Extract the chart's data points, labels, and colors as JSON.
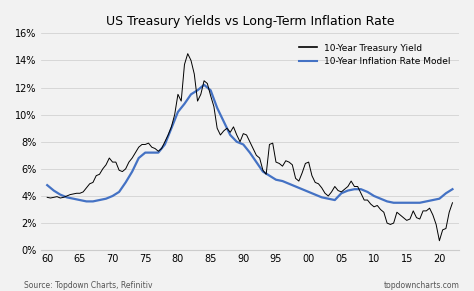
{
  "title": "US Treasury Yields vs Long-Term Inflation Rate",
  "legend_labels": [
    "10-Year Treasury Yield",
    "10-Year Inflation Rate Model"
  ],
  "legend_colors": [
    "black",
    "#4472C4"
  ],
  "source_left": "Source: Topdown Charts, Refinitiv",
  "source_right": "topdowncharts.com",
  "x_tick_positions": [
    1960,
    1965,
    1970,
    1975,
    1980,
    1985,
    1990,
    1995,
    2000,
    2005,
    2010,
    2015,
    2020
  ],
  "x_tick_labels": [
    "60",
    "65",
    "70",
    "75",
    "80",
    "85",
    "90",
    "95",
    "00",
    "05",
    "10",
    "15",
    "20"
  ],
  "ylim": [
    0,
    16
  ],
  "y_ticks": [
    0,
    2,
    4,
    6,
    8,
    10,
    12,
    14,
    16
  ],
  "y_tick_labels": [
    "0%",
    "2%",
    "4%",
    "6%",
    "8%",
    "10%",
    "12%",
    "14%",
    "16%"
  ],
  "background_color": "#f2f2f2",
  "treasury_yield": {
    "x": [
      1960,
      1960.5,
      1961,
      1961.5,
      1962,
      1962.5,
      1963,
      1963.5,
      1964,
      1964.5,
      1965,
      1965.5,
      1966,
      1966.5,
      1967,
      1967.5,
      1968,
      1968.5,
      1969,
      1969.5,
      1970,
      1970.5,
      1971,
      1971.5,
      1972,
      1972.5,
      1973,
      1973.5,
      1974,
      1974.5,
      1975,
      1975.5,
      1976,
      1976.5,
      1977,
      1977.5,
      1978,
      1978.5,
      1979,
      1979.5,
      1980,
      1980.5,
      1981,
      1981.5,
      1982,
      1982.5,
      1983,
      1983.5,
      1984,
      1984.5,
      1985,
      1985.5,
      1986,
      1986.5,
      1987,
      1987.5,
      1988,
      1988.5,
      1989,
      1989.5,
      1990,
      1990.5,
      1991,
      1991.5,
      1992,
      1992.5,
      1993,
      1993.5,
      1994,
      1994.5,
      1995,
      1995.5,
      1996,
      1996.5,
      1997,
      1997.5,
      1998,
      1998.5,
      1999,
      1999.5,
      2000,
      2000.5,
      2001,
      2001.5,
      2002,
      2002.5,
      2003,
      2003.5,
      2004,
      2004.5,
      2005,
      2005.5,
      2006,
      2006.5,
      2007,
      2007.5,
      2008,
      2008.5,
      2009,
      2009.5,
      2010,
      2010.5,
      2011,
      2011.5,
      2012,
      2012.5,
      2013,
      2013.5,
      2014,
      2014.5,
      2015,
      2015.5,
      2016,
      2016.5,
      2017,
      2017.5,
      2018,
      2018.5,
      2019,
      2019.5,
      2020,
      2020.5,
      2021,
      2021.5,
      2022
    ],
    "y": [
      3.9,
      3.85,
      3.9,
      3.95,
      3.85,
      3.9,
      4.0,
      4.1,
      4.15,
      4.2,
      4.2,
      4.3,
      4.6,
      4.9,
      5.0,
      5.5,
      5.6,
      6.0,
      6.3,
      6.8,
      6.5,
      6.5,
      5.9,
      5.8,
      6.0,
      6.5,
      6.8,
      7.2,
      7.6,
      7.8,
      7.8,
      7.9,
      7.6,
      7.5,
      7.3,
      7.5,
      8.0,
      8.5,
      9.1,
      10.0,
      11.5,
      11.0,
      13.7,
      14.5,
      14.0,
      13.0,
      11.0,
      11.5,
      12.5,
      12.3,
      11.4,
      10.6,
      9.0,
      8.5,
      8.8,
      9.0,
      8.7,
      9.1,
      8.5,
      8.0,
      8.6,
      8.5,
      8.0,
      7.5,
      7.0,
      6.8,
      5.9,
      5.6,
      7.8,
      7.9,
      6.5,
      6.4,
      6.2,
      6.6,
      6.5,
      6.3,
      5.3,
      5.1,
      5.7,
      6.4,
      6.5,
      5.5,
      5.0,
      4.9,
      4.6,
      4.2,
      4.0,
      4.3,
      4.7,
      4.4,
      4.3,
      4.5,
      4.7,
      5.1,
      4.7,
      4.7,
      4.2,
      3.7,
      3.7,
      3.4,
      3.2,
      3.3,
      3.0,
      2.8,
      2.0,
      1.9,
      2.0,
      2.8,
      2.6,
      2.4,
      2.2,
      2.3,
      2.9,
      2.4,
      2.3,
      2.9,
      2.9,
      3.1,
      2.6,
      1.9,
      0.7,
      1.5,
      1.6,
      2.8,
      3.5
    ]
  },
  "inflation_model": {
    "x": [
      1960,
      1961,
      1962,
      1963,
      1964,
      1965,
      1966,
      1967,
      1968,
      1969,
      1970,
      1971,
      1972,
      1973,
      1974,
      1975,
      1976,
      1977,
      1978,
      1979,
      1980,
      1981,
      1982,
      1983,
      1984,
      1985,
      1986,
      1987,
      1988,
      1989,
      1990,
      1991,
      1992,
      1993,
      1994,
      1995,
      1996,
      1997,
      1998,
      1999,
      2000,
      2001,
      2002,
      2003,
      2004,
      2005,
      2006,
      2007,
      2008,
      2009,
      2010,
      2011,
      2012,
      2013,
      2014,
      2015,
      2016,
      2017,
      2018,
      2019,
      2020,
      2021,
      2022
    ],
    "y": [
      4.8,
      4.4,
      4.1,
      3.9,
      3.8,
      3.7,
      3.6,
      3.6,
      3.7,
      3.8,
      4.0,
      4.3,
      5.0,
      5.8,
      6.8,
      7.2,
      7.2,
      7.2,
      7.8,
      9.0,
      10.2,
      10.8,
      11.5,
      11.8,
      12.2,
      11.8,
      10.5,
      9.5,
      8.5,
      8.0,
      7.8,
      7.2,
      6.5,
      5.8,
      5.5,
      5.2,
      5.1,
      4.9,
      4.7,
      4.5,
      4.3,
      4.1,
      3.9,
      3.8,
      3.7,
      4.2,
      4.4,
      4.5,
      4.5,
      4.3,
      4.0,
      3.8,
      3.6,
      3.5,
      3.5,
      3.5,
      3.5,
      3.5,
      3.6,
      3.7,
      3.8,
      4.2,
      4.5
    ]
  }
}
